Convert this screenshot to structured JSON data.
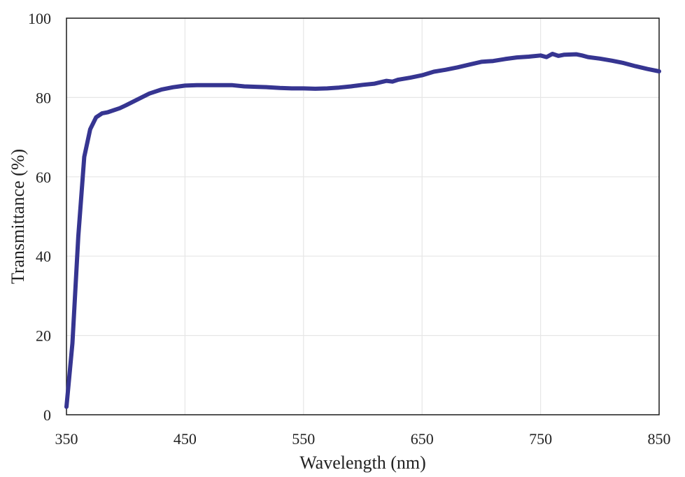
{
  "chart_data": {
    "type": "line",
    "title": "",
    "xlabel": "Wavelength (nm)",
    "ylabel": "Transmittance (%)",
    "xlim": [
      350,
      850
    ],
    "ylim": [
      0,
      100
    ],
    "grid": true,
    "x_ticks": [
      350,
      450,
      550,
      650,
      750,
      850
    ],
    "y_ticks": [
      0,
      20,
      40,
      60,
      80,
      100
    ],
    "x_tick_labels": [
      "350",
      "450",
      "550",
      "650",
      "750",
      "850"
    ],
    "y_tick_labels": [
      "0",
      "20",
      "40",
      "60",
      "80",
      "100"
    ],
    "series_color": "#363591",
    "series": [
      {
        "x": [
          350,
          355,
          360,
          365,
          370,
          375,
          380,
          385,
          390,
          395,
          400,
          410,
          420,
          430,
          440,
          450,
          460,
          470,
          480,
          490,
          500,
          510,
          520,
          530,
          540,
          550,
          560,
          570,
          580,
          590,
          600,
          610,
          620,
          625,
          630,
          640,
          650,
          660,
          670,
          680,
          690,
          700,
          705,
          710,
          720,
          730,
          740,
          750,
          755,
          760,
          765,
          770,
          780,
          785,
          790,
          800,
          810,
          820,
          830,
          840,
          850
        ],
        "y": [
          2,
          18,
          45,
          65,
          72,
          75,
          76,
          76.3,
          76.8,
          77.3,
          78,
          79.5,
          81,
          82,
          82.6,
          83,
          83.1,
          83.1,
          83.1,
          83.1,
          82.8,
          82.7,
          82.6,
          82.4,
          82.3,
          82.3,
          82.2,
          82.3,
          82.5,
          82.8,
          83.2,
          83.5,
          84.2,
          84,
          84.5,
          85,
          85.6,
          86.5,
          87,
          87.6,
          88.3,
          89,
          89.1,
          89.2,
          89.7,
          90.1,
          90.3,
          90.6,
          90.2,
          91,
          90.5,
          90.8,
          90.9,
          90.6,
          90.2,
          89.8,
          89.3,
          88.7,
          87.9,
          87.2,
          86.6
        ]
      }
    ]
  }
}
